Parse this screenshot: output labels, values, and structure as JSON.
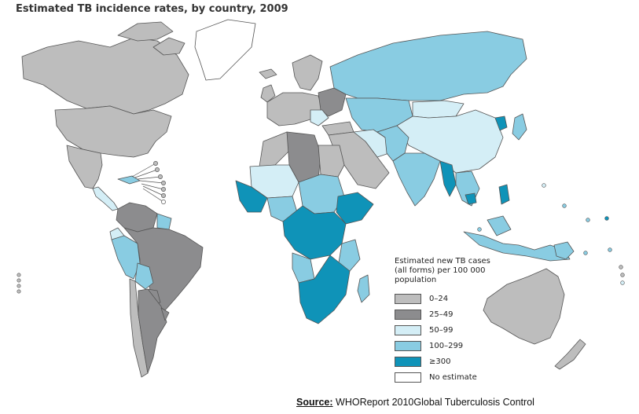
{
  "title": "Estimated TB incidence rates, by country, 2009",
  "legend": {
    "title": "Estimated new TB cases (all forms) per 100 000 population",
    "items": [
      {
        "label": "0–24",
        "color": "#bdbdbd"
      },
      {
        "label": "25–49",
        "color": "#8c8c8e"
      },
      {
        "label": "50–99",
        "color": "#d4eef6"
      },
      {
        "label": "100–299",
        "color": "#89cce2"
      },
      {
        "label": "≥300",
        "color": "#0f93b8"
      },
      {
        "label": "No estimate",
        "color": "#ffffff"
      }
    ]
  },
  "source": {
    "label": "Source:",
    "text": "WHOReport 2010Global Tuberculosis Control"
  }
}
